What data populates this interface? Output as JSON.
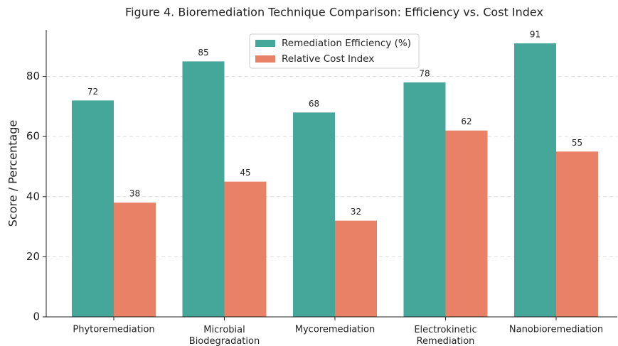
{
  "chart_data": {
    "type": "bar",
    "title": "Figure 4. Bioremediation Technique Comparison: Efficiency vs. Cost Index",
    "ylabel": "Score / Percentage",
    "categories": [
      "Phytoremediation",
      "Microbial\nBiodegradation",
      "Mycoremediation",
      "Electrokinetic\nRemediation",
      "Nanobioremediation"
    ],
    "series": [
      {
        "name": "Remediation Efficiency (%)",
        "color": "#45a69a",
        "values": [
          72,
          85,
          68,
          78,
          91
        ]
      },
      {
        "name": "Relative Cost Index",
        "color": "#e98166",
        "values": [
          38,
          45,
          32,
          62,
          55
        ]
      }
    ],
    "ylim": [
      0,
      95.5
    ],
    "yticks": [
      0,
      20,
      40,
      60,
      80
    ],
    "grid": true,
    "legend": "upper center"
  }
}
